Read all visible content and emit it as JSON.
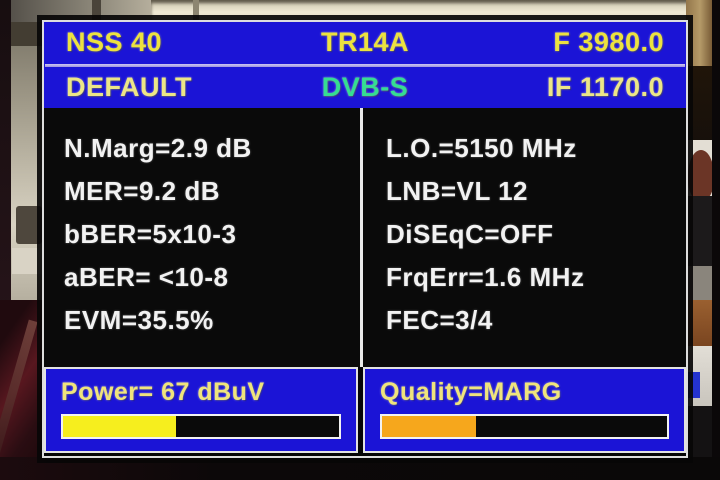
{
  "device_screen": {
    "header": {
      "satellite_name": "NSS 40",
      "transponder": "TR14A",
      "frequency": "F 3980.0",
      "profile": "DEFAULT",
      "standard": "DVB-S",
      "if_frequency": "IF 1170.0"
    },
    "metrics_left": [
      {
        "label": "N.Marg",
        "value": "2.9 dB",
        "text": "N.Marg=2.9 dB"
      },
      {
        "label": "MER",
        "value": "9.2 dB",
        "text": "MER=9.2 dB"
      },
      {
        "label": "bBER",
        "value": "5x10-3",
        "text": "bBER=5x10-3"
      },
      {
        "label": "aBER",
        "value": "<10-8",
        "text": "aBER= <10-8"
      },
      {
        "label": "EVM",
        "value": "35.5%",
        "text": "EVM=35.5%"
      }
    ],
    "metrics_right": [
      {
        "label": "L.O.",
        "value": "5150 MHz",
        "text": "L.O.=5150 MHz"
      },
      {
        "label": "LNB",
        "value": "VL 12",
        "text": "LNB=VL 12"
      },
      {
        "label": "DiSEqC",
        "value": "OFF",
        "text": "DiSEqC=OFF"
      },
      {
        "label": "FrqErr",
        "value": "1.6 MHz",
        "text": "FrqErr=1.6 MHz"
      },
      {
        "label": "FEC",
        "value": "3/4",
        "text": "FEC=3/4"
      }
    ],
    "power": {
      "label": "Power",
      "value": "67 dBuV",
      "text": "Power= 67 dBuV",
      "bar_percent": "41%",
      "bar_color": "#f6ee1e"
    },
    "quality": {
      "label": "Quality",
      "value": "MARG",
      "text": "Quality=MARG",
      "bar_percent": "33%",
      "bar_color": "#f6a71c"
    },
    "colors": {
      "panel_blue": "#1b14d6",
      "header_text_yellow": "#ece23f",
      "standard_green": "#35dd92",
      "metric_text": "#f2f2f2"
    }
  }
}
